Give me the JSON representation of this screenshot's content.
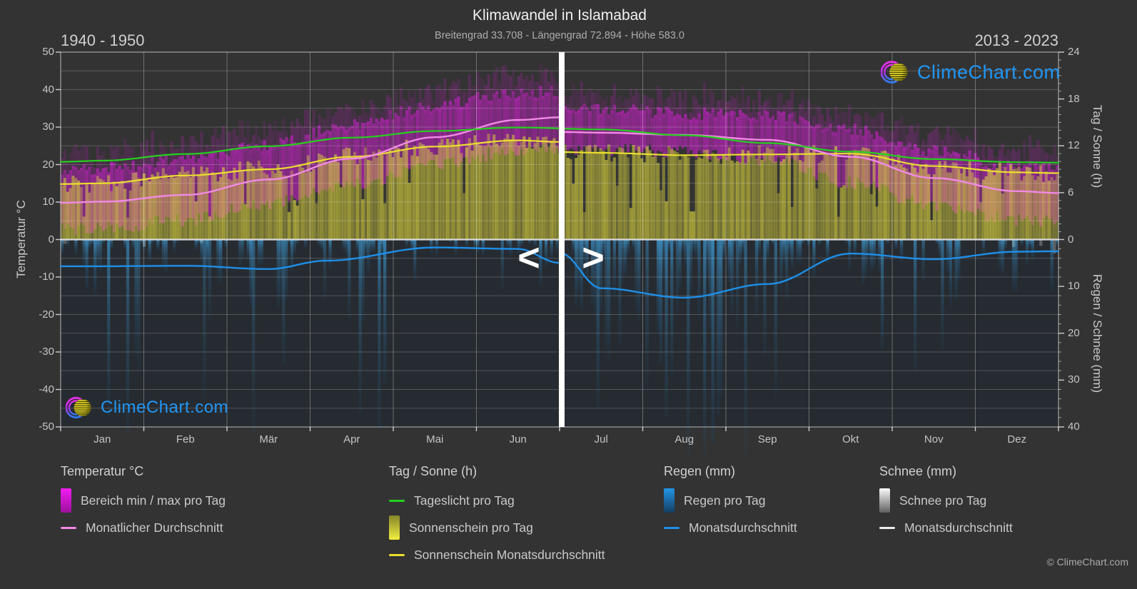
{
  "title": "Klimawandel in Islamabad",
  "subtitle": "Breitengrad 33.708 - Längengrad 72.894 - Höhe 583.0",
  "era_left": "1940 - 1950",
  "era_right": "2013 - 2023",
  "watermark": "ClimeChart.com",
  "copyright": "© ClimeChart.com",
  "divider": {
    "left_arrow": "<",
    "right_arrow": ">"
  },
  "axes": {
    "left_title": "Temperatur °C",
    "left_ticks": [
      50,
      40,
      30,
      20,
      10,
      0,
      -10,
      -20,
      -30,
      -40,
      -50
    ],
    "right_top_title": "Tag / Sonne (h)",
    "right_top_ticks": [
      24,
      18,
      12,
      6,
      0
    ],
    "right_bottom_title": "Regen / Schnee (mm)",
    "right_bottom_ticks": [
      10,
      20,
      30,
      40
    ],
    "months": [
      "Jan",
      "Feb",
      "Mär",
      "Apr",
      "Mai",
      "Jun",
      "Jul",
      "Aug",
      "Sep",
      "Okt",
      "Nov",
      "Dez"
    ]
  },
  "legend": {
    "temperature": {
      "title": "Temperatur °C",
      "items": [
        {
          "swatch": "band-magenta",
          "label": "Bereich min / max pro Tag"
        },
        {
          "swatch": "line-pink",
          "label": "Monatlicher Durchschnitt"
        }
      ]
    },
    "sun": {
      "title": "Tag / Sonne (h)",
      "items": [
        {
          "swatch": "line-green",
          "label": "Tageslicht pro Tag"
        },
        {
          "swatch": "band-yellow",
          "label": "Sonnenschein pro Tag"
        },
        {
          "swatch": "line-yellow",
          "label": "Sonnenschein Monatsdurchschnitt"
        }
      ]
    },
    "rain": {
      "title": "Regen (mm)",
      "items": [
        {
          "swatch": "band-blue",
          "label": "Regen pro Tag"
        },
        {
          "swatch": "line-blue",
          "label": "Monatsdurchschnitt"
        }
      ]
    },
    "snow": {
      "title": "Schnee (mm)",
      "items": [
        {
          "swatch": "band-white",
          "label": "Schnee pro Tag"
        },
        {
          "swatch": "line-white",
          "label": "Monatsdurchschnitt"
        }
      ]
    }
  },
  "colors": {
    "background": "#333333",
    "rain_area": "#262b31",
    "grid": "rgba(255,255,255,0.20)",
    "grid_month": "rgba(255,255,255,0.30)",
    "border": "rgba(255,255,255,0.55)",
    "zero_line": "#d9d9d9",
    "temp_band": "#c122c1",
    "temp_avg_line": "#f08ae4",
    "daylight_line": "#25d01d",
    "sunshine_fill": "#d8d23c",
    "sunshine_line": "#e9df2e",
    "rain_bar_top": "#3fa2e0",
    "rain_bar_bottom": "#16486f",
    "rain_line": "#1e8fe8",
    "snow_bar": "#d8d8d8",
    "snow_line": "#efefef",
    "divider": "#ffffff",
    "arrow": "#ffffff",
    "logo_blue": "#2196f3",
    "legend_swatches": {
      "temp_from": "#f21cf2",
      "temp_to": "#9c109c",
      "sun_from": "#85852a",
      "sun_to": "#f2ee3e",
      "rain_from": "#2196e6",
      "rain_to": "#153d61",
      "snow_from": "#fbfbfb",
      "snow_to": "#606060"
    },
    "line_swatches": {
      "pink": "#f08ae4",
      "green": "#25d01d",
      "yellow": "#e9df2e",
      "blue": "#1e8fe8",
      "white": "#ececec"
    }
  },
  "chart_data": {
    "type": "composite",
    "description": "Climate-change comparison chart: left half shows era 1940-1950 (Jan-Jun), right half era 2013-2023 (Jul-Dez), split by white divider at end of June. Daily bars (temp min/max band magenta, sunshine yellow, rain blue, snow white) plus smoothed monthly average lines.",
    "x_unit": "month index, Jan=0 .. Dez=12; control points at month centers",
    "eras": {
      "left": "1940 - 1950",
      "right": "2013 - 2023",
      "divider_month": 6
    },
    "axis_ranges": {
      "temperature_c": [
        -50,
        50
      ],
      "day_sun_h": [
        0,
        24
      ],
      "rain_snow_mm": [
        0,
        40
      ],
      "note": "hours axis 0-24 maps to 0..50 °C zone; mm axis 0-40 maps to 0..-50 °C zone (downward)"
    },
    "series": [
      {
        "name": "daylight_per_day_h",
        "type": "line",
        "color_key": "daylight_line",
        "m": [
          0,
          0.5,
          1.5,
          2.5,
          3.5,
          4.5,
          5.5,
          6.5,
          7.5,
          8.5,
          9.5,
          10.5,
          11.5,
          12
        ],
        "v": [
          9.95,
          10.1,
          10.95,
          11.95,
          13.05,
          13.9,
          14.35,
          14.1,
          13.35,
          12.35,
          11.25,
          10.3,
          9.9,
          9.85
        ]
      },
      {
        "name": "sunshine_monthly_avg_h",
        "type": "line",
        "color_key": "sunshine_line",
        "left": {
          "m": [
            0,
            0.5,
            1.5,
            2.5,
            3.5,
            4.5,
            5.5,
            6
          ],
          "v": [
            7.1,
            7.2,
            8.2,
            9.0,
            10.6,
            11.9,
            12.7,
            12.5
          ]
        },
        "right": {
          "m": [
            6,
            6.5,
            7.5,
            8.5,
            9.5,
            10.5,
            11.5,
            12
          ],
          "v": [
            11.2,
            11.1,
            10.8,
            10.9,
            11.0,
            9.4,
            8.6,
            8.5
          ]
        }
      },
      {
        "name": "temp_monthly_avg_c",
        "type": "line",
        "color_key": "temp_avg_line",
        "left": {
          "m": [
            0,
            0.5,
            1.5,
            2.5,
            3.5,
            4.5,
            5.5,
            6
          ],
          "v": [
            9.8,
            10.1,
            11.9,
            16.0,
            21.6,
            27.3,
            31.9,
            32.6
          ]
        },
        "right": {
          "m": [
            6,
            6.5,
            7.5,
            8.5,
            9.5,
            10.5,
            11.5,
            12
          ],
          "v": [
            28.7,
            28.5,
            27.9,
            26.6,
            22.1,
            16.4,
            12.9,
            12.4
          ]
        }
      },
      {
        "name": "temp_daily_min_c",
        "type": "area-band-lower",
        "color_key": "temp_band",
        "left": {
          "m": [
            0,
            0.5,
            1.5,
            2.5,
            3.5,
            4.5,
            5.5,
            6
          ],
          "v": [
            2.8,
            3.0,
            5.2,
            9.6,
            14.6,
            19.8,
            23.9,
            24.5
          ]
        },
        "right": {
          "m": [
            6,
            6.5,
            7.5,
            8.5,
            9.5,
            10.5,
            11.5,
            12
          ],
          "v": [
            24.3,
            24.0,
            23.4,
            21.2,
            15.2,
            9.2,
            5.1,
            4.7
          ]
        }
      },
      {
        "name": "temp_daily_max_c",
        "type": "area-band-upper",
        "color_key": "temp_band",
        "left": {
          "m": [
            0,
            0.5,
            1.5,
            2.5,
            3.5,
            4.5,
            5.5,
            6
          ],
          "v": [
            18.6,
            19.0,
            21.2,
            25.2,
            30.6,
            35.8,
            39.3,
            39.6
          ]
        },
        "right": {
          "m": [
            6,
            6.5,
            7.5,
            8.5,
            9.5,
            10.5,
            11.5,
            12
          ],
          "v": [
            35.3,
            35.0,
            33.6,
            33.0,
            29.4,
            23.6,
            19.6,
            19.2
          ]
        }
      },
      {
        "name": "rain_monthly_avg_mm",
        "type": "line",
        "color_key": "rain_line",
        "left": {
          "m": [
            0,
            0.5,
            1.5,
            2.5,
            3.2,
            4.5,
            5.5,
            6
          ],
          "v": [
            5.7,
            5.7,
            5.6,
            6.3,
            4.5,
            1.7,
            2.0,
            5.0
          ]
        },
        "right": {
          "m": [
            6,
            6.5,
            7.5,
            8.5,
            9.5,
            10.5,
            11.5,
            12
          ],
          "v": [
            2.8,
            10.4,
            12.4,
            9.5,
            3.0,
            4.2,
            2.6,
            2.5
          ]
        }
      },
      {
        "name": "snow_monthly_avg_mm",
        "type": "line",
        "color_key": "snow_line",
        "m": [
          0,
          12
        ],
        "v": [
          0,
          0
        ]
      }
    ]
  }
}
